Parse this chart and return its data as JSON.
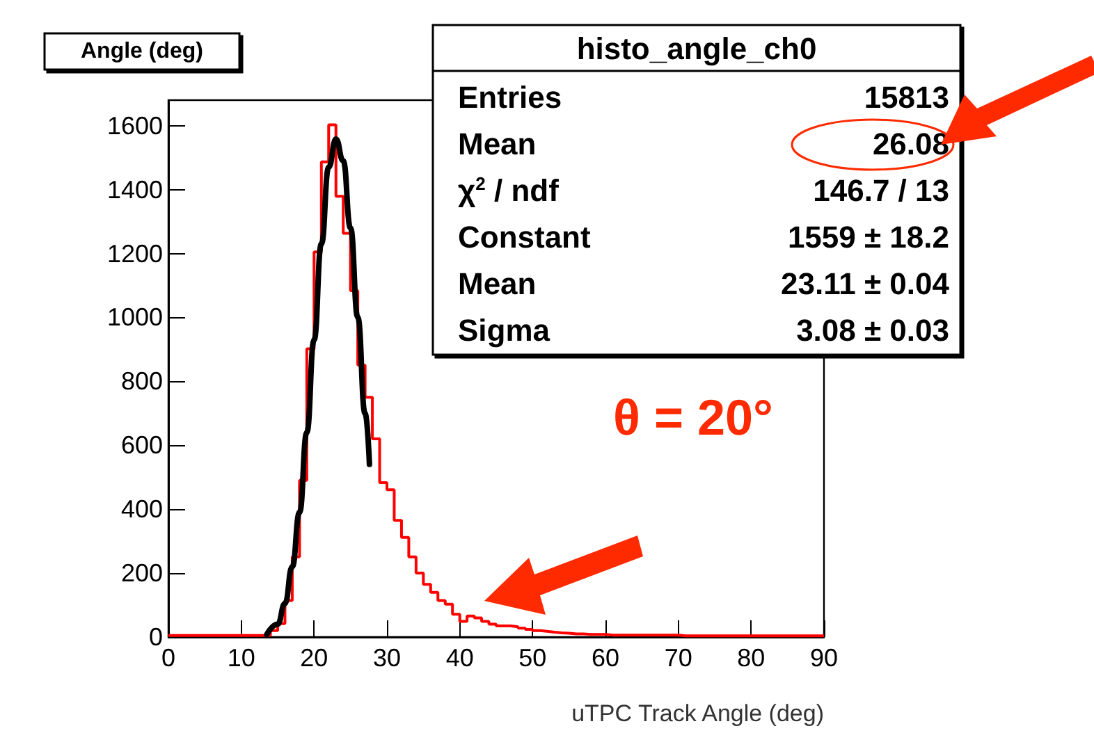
{
  "chart_data": {
    "type": "histogram",
    "title": "Angle (deg)",
    "xlabel": "uTPC Track Angle (deg)",
    "bins": [
      0,
      1,
      2,
      3,
      4,
      5,
      6,
      7,
      8,
      9,
      10,
      11,
      12,
      13,
      14,
      15,
      16,
      17,
      18,
      19,
      20,
      21,
      22,
      23,
      24,
      25,
      26,
      27,
      28,
      29,
      30,
      31,
      32,
      33,
      34,
      35,
      36,
      37,
      38,
      39,
      40,
      41,
      42,
      43,
      44,
      45,
      46,
      47,
      48,
      49,
      50,
      51,
      52,
      53,
      54,
      55,
      56,
      57,
      58,
      59,
      60,
      61,
      62,
      63,
      64,
      65,
      66,
      67,
      68,
      69,
      70,
      71,
      72,
      73,
      74,
      75,
      76,
      77,
      78,
      79,
      80,
      81,
      82,
      83,
      84,
      85,
      86,
      87,
      88,
      89,
      90
    ],
    "series": [
      {
        "type": "histogram",
        "color": "#ff0000",
        "values": [
          5,
          5,
          5,
          5,
          5,
          5,
          5,
          5,
          5,
          5,
          5,
          5,
          5,
          5,
          20,
          42,
          114,
          251,
          490,
          902,
          1205,
          1487,
          1603,
          1379,
          1263,
          1084,
          851,
          750,
          620,
          483,
          461,
          365,
          312,
          251,
          200,
          165,
          140,
          114,
          103,
          71,
          49,
          66,
          60,
          49,
          40,
          35,
          35,
          32,
          28,
          24,
          20,
          18,
          15,
          13,
          12,
          10,
          10,
          8,
          8,
          8,
          6,
          6,
          6,
          6,
          6,
          6,
          6,
          6,
          6,
          6,
          4,
          4,
          4,
          4,
          4,
          4,
          4,
          4,
          4,
          4,
          4,
          4,
          4,
          4,
          4,
          4,
          4,
          4,
          4,
          4
        ]
      },
      {
        "type": "line",
        "color": "#000000",
        "x": [
          13.5,
          15,
          16,
          17,
          18,
          19,
          20,
          21,
          22,
          23,
          24,
          25,
          26,
          27,
          27.6
        ],
        "values": [
          8,
          40,
          105,
          220,
          390,
          640,
          930,
          1230,
          1470,
          1558,
          1490,
          1280,
          1000,
          700,
          540
        ]
      }
    ],
    "xlim": [
      0,
      90
    ],
    "xticks": [
      0,
      10,
      20,
      30,
      40,
      50,
      60,
      70,
      80,
      90
    ],
    "ylim": [
      0,
      1680
    ],
    "yticks": [
      0,
      200,
      400,
      600,
      800,
      1000,
      1200,
      1400,
      1600
    ],
    "grid": false,
    "annotations": [
      "histo_angle_ch0",
      "Entries",
      "15813",
      "Mean",
      "26.08",
      "χ$^{2}$ / ndf",
      "146.7 / 13",
      "Constant",
      "1559 ± 18.2",
      "Mean",
      "23.11 ± 0.04",
      "Sigma",
      "3.08 ± 0.03",
      "θ = 20°"
    ]
  }
}
